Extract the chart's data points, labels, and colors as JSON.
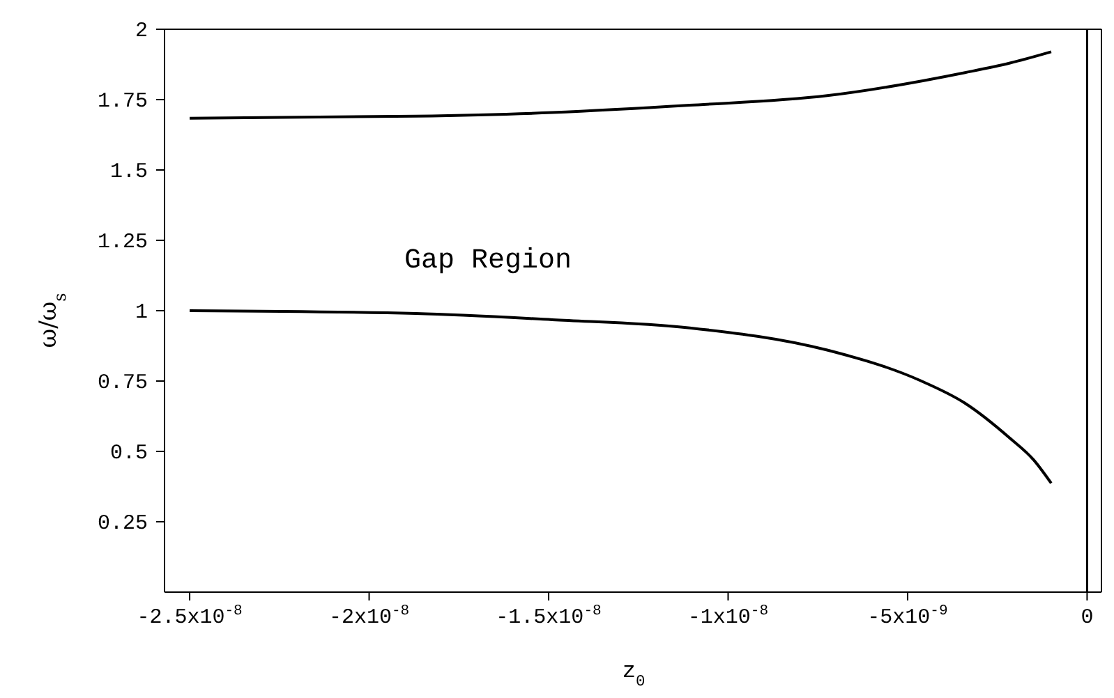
{
  "chart_data": {
    "type": "line",
    "xlabel": "z$_{0}$",
    "ylabel": "ω/ω$_{s}$",
    "annotations": [
      "Gap Region"
    ],
    "series": [
      {
        "color": "#000000",
        "x": [
          -2.5e-08,
          -1.87e-08,
          -1.49e-08,
          -1.107e-08,
          -7.24e-09,
          -3.4e-09,
          -2.15e-09,
          -1e-09
        ],
        "values": [
          1.684,
          1.691,
          1.704,
          1.73,
          1.764,
          1.846,
          1.88,
          1.92
        ]
      },
      {
        "color": "#000000",
        "x": [
          -2.5e-08,
          -1.87e-08,
          -1.49e-08,
          -1.107e-08,
          -7.24e-09,
          -4.67e-09,
          -3.41e-09,
          -2.15e-09,
          -1.49e-09,
          -1e-09
        ],
        "values": [
          1.0,
          0.99,
          0.968,
          0.939,
          0.86,
          0.753,
          0.672,
          0.547,
          0.47,
          0.387
        ]
      }
    ],
    "xlim": [
      -2.57e-08,
      4e-10
    ],
    "xticks": [
      {
        "value": -2.5e-08,
        "label": "-2.5x10$^{-8}$"
      },
      {
        "value": -2e-08,
        "label": "-2x10$^{-8}$"
      },
      {
        "value": -1.5e-08,
        "label": "-1.5x10$^{-8}$"
      },
      {
        "value": -1e-08,
        "label": "-1x10$^{-8}$"
      },
      {
        "value": -5e-09,
        "label": "-5x10$^{-9}$"
      },
      0
    ],
    "ylim": [
      0,
      2
    ],
    "yticks": [
      0.25,
      0.5,
      0.75,
      1,
      1.25,
      1.5,
      1.75,
      2
    ],
    "ref_lines": [
      {
        "axis": "x",
        "value": 0,
        "color": "#000000"
      }
    ],
    "grid": false,
    "legend": false,
    "marker": "none",
    "line_style": "solid"
  }
}
